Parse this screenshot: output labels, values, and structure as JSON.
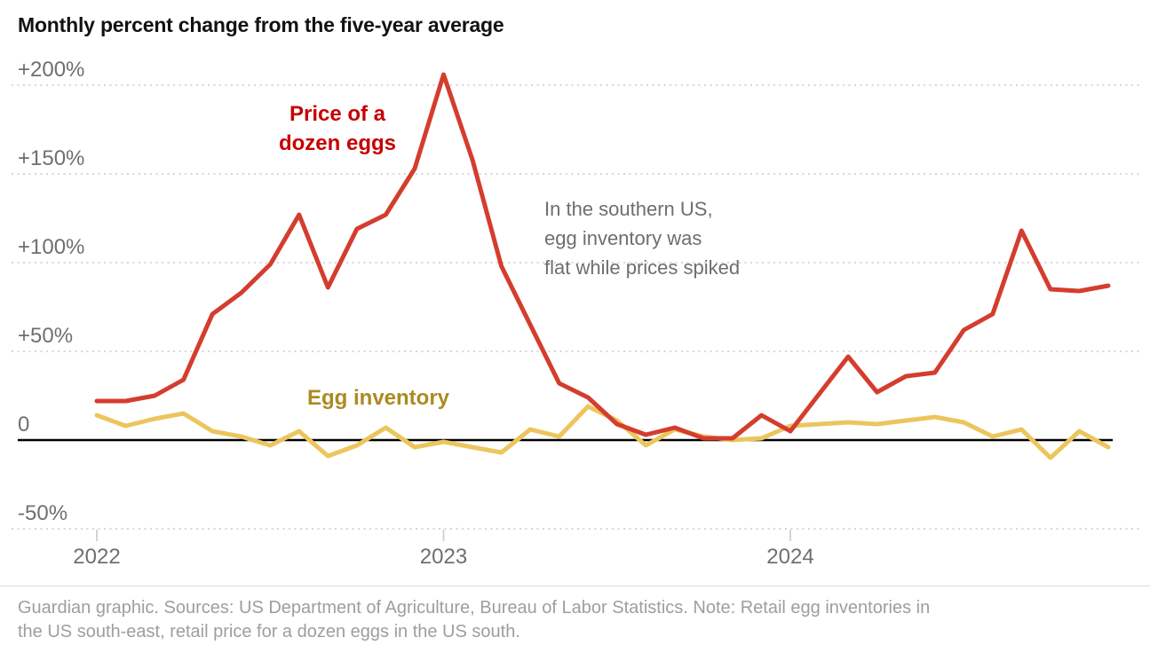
{
  "page": {
    "background": "#ffffff"
  },
  "header": {
    "title": "Monthly percent change from the five-year average"
  },
  "colors": {
    "grid_line": "#c9c9c9",
    "zero_line": "#000000",
    "axis_text": "#6f6f6f",
    "annotation_text": "#6e6e6e",
    "footer_text": "#9e9e9e",
    "divider": "#dcdcdc",
    "price_line": "#d43d2e",
    "price_label": "#c70000",
    "inventory_line": "#ecc55d",
    "inventory_label": "#ac8a21"
  },
  "chart_data": {
    "type": "line",
    "title": "Monthly percent change from the five-year average",
    "x_start": "2022-01",
    "x_interval": "month",
    "n_points": 36,
    "grid": "dotted-horizontal",
    "x_axis": {
      "ticks": [
        {
          "index": 0,
          "label": "2022"
        },
        {
          "index": 12,
          "label": "2023"
        },
        {
          "index": 24,
          "label": "2024"
        }
      ]
    },
    "y_axis": {
      "unit": "percent change from five-year average",
      "range": [
        -60,
        215
      ],
      "ticks": [
        {
          "label": "+200%",
          "value": 200
        },
        {
          "label": "+150%",
          "value": 150
        },
        {
          "label": "+100%",
          "value": 100
        },
        {
          "label": "+50%",
          "value": 50
        },
        {
          "label": "0",
          "value": 0
        },
        {
          "label": "-50%",
          "value": -50
        }
      ]
    },
    "series": [
      {
        "id": "price",
        "name": "Price of a dozen eggs",
        "label": "Price of a\ndozen eggs",
        "color": "#d43d2e",
        "label_color": "#c70000",
        "values": [
          22,
          22,
          25,
          34,
          71,
          83,
          99,
          127,
          86,
          119,
          127,
          153,
          206,
          158,
          98,
          65,
          32,
          24,
          9,
          3,
          7,
          1,
          1,
          14,
          5,
          26,
          47,
          27,
          36,
          38,
          62,
          71,
          118,
          85,
          84,
          87
        ]
      },
      {
        "id": "inventory",
        "name": "Egg inventory",
        "label": "Egg inventory",
        "color": "#ecc55d",
        "label_color": "#ac8a21",
        "values": [
          14,
          8,
          12,
          15,
          5,
          2,
          -3,
          5,
          -9,
          -3,
          7,
          -4,
          -1,
          -4,
          -7,
          6,
          2,
          19,
          11,
          -3,
          6,
          2,
          0,
          1,
          8,
          9,
          10,
          9,
          11,
          13,
          10,
          2,
          6,
          -10,
          5,
          -4
        ]
      }
    ],
    "annotation": "In the southern US,\negg inventory was\nflat while prices spiked",
    "legend_position": "direct-labels-on-chart"
  },
  "footer": {
    "text": "Guardian graphic. Sources: US Department of Agriculture, Bureau of Labor Statistics. Note: Retail egg inventories in\nthe US south-east, retail price for a dozen eggs in the US south."
  }
}
